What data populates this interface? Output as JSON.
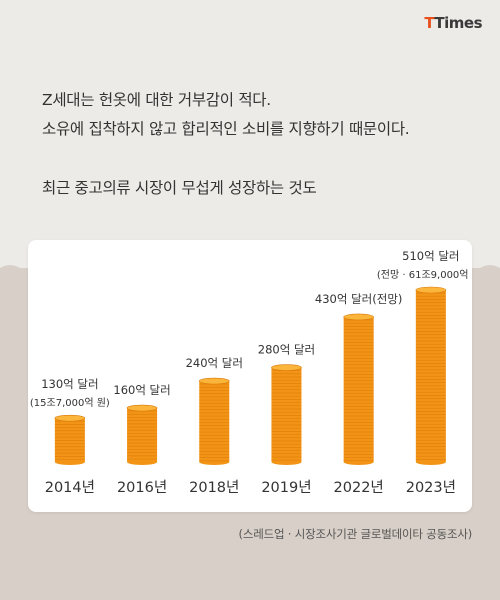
{
  "logo": {
    "part1": "T",
    "part2": "Times"
  },
  "headline": {
    "line1": "Z세대는 헌옷에 대한 거부감이 적다.",
    "line2": "소유에 집착하지 않고 합리적인 소비를 지향하기 때문이다.",
    "line3": "최근 중고의류 시장이 무섭게 성장하는 것도"
  },
  "source": "(스레드업 · 시장조사기관 글로벌데이타 공동조사)",
  "colors": {
    "coin": "#f39416",
    "coin_top": "#fbb53a",
    "coin_line": "#d97a0a",
    "text": "#333333"
  },
  "chart_data": {
    "type": "bar",
    "title": "",
    "xlabel": "",
    "ylabel": "",
    "categories": [
      "2014년",
      "2016년",
      "2018년",
      "2019년",
      "2022년",
      "2023년"
    ],
    "values": [
      130,
      160,
      240,
      280,
      430,
      510
    ],
    "unit": "억 달러",
    "value_labels": [
      "130억 달러",
      "160억 달러",
      "240억 달러",
      "280억 달러",
      "430억 달러(전망)",
      "510억 달러"
    ],
    "sub_labels": [
      "(15조7,000억 원)",
      "",
      "",
      "",
      "",
      "(전망 · 61조9,000억 원)"
    ],
    "ylim": [
      0,
      510
    ],
    "grid": false,
    "legend": "none"
  }
}
